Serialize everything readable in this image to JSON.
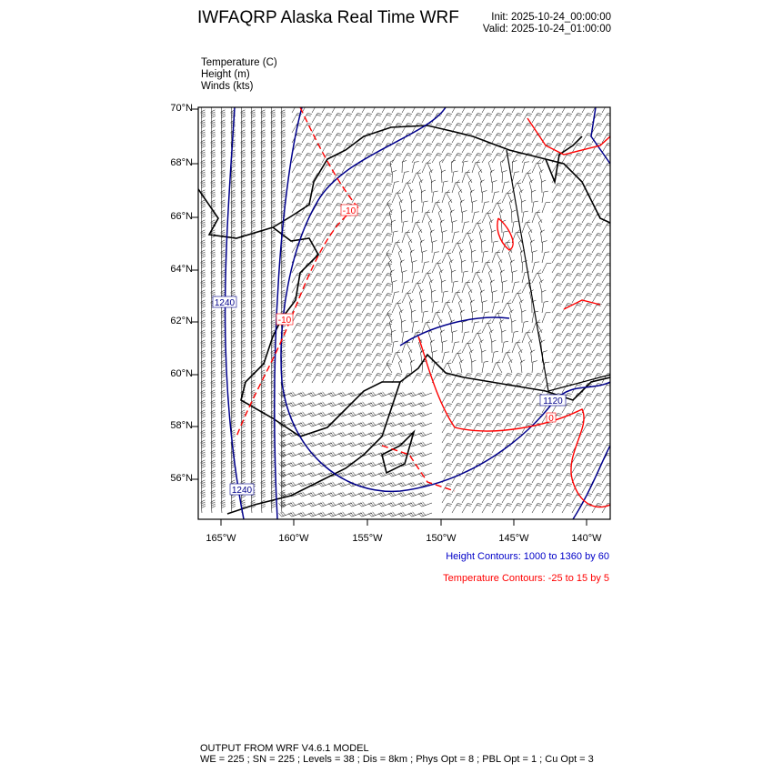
{
  "header": {
    "title": "IWFAQRP Alaska Real Time WRF",
    "init": "Init: 2025-10-24_00:00:00",
    "valid": "Valid: 2025-10-24_01:00:00"
  },
  "fields": [
    "Temperature   (C)",
    "Height   (m)",
    "Winds   (kts)"
  ],
  "map": {
    "lat_labels": [
      "70°N",
      "68°N",
      "66°N",
      "64°N",
      "62°N",
      "60°N",
      "58°N",
      "56°N"
    ],
    "lon_labels": [
      "165°W",
      "160°W",
      "155°W",
      "150°W",
      "145°W",
      "140°W"
    ],
    "height_contour_labels": [
      "1240",
      "1240",
      "1120"
    ],
    "temperature_contour_labels": [
      "-10",
      "-10",
      "0"
    ],
    "colors": {
      "height": "#00008b",
      "temperature": "#ff0000",
      "coast": "#000000",
      "barbs": "#000000"
    }
  },
  "legend": {
    "height": "Height Contours: 1000 to 1360 by 60",
    "temperature": "Temperature Contours: -25 to 15 by 5"
  },
  "footer": {
    "line1": "OUTPUT FROM WRF V4.6.1 MODEL",
    "line2": "WE = 225 ; SN = 225 ; Levels = 38 ; Dis = 8km ; Phys Opt = 8 ; PBL Opt = 1 ; Cu Opt = 3"
  }
}
